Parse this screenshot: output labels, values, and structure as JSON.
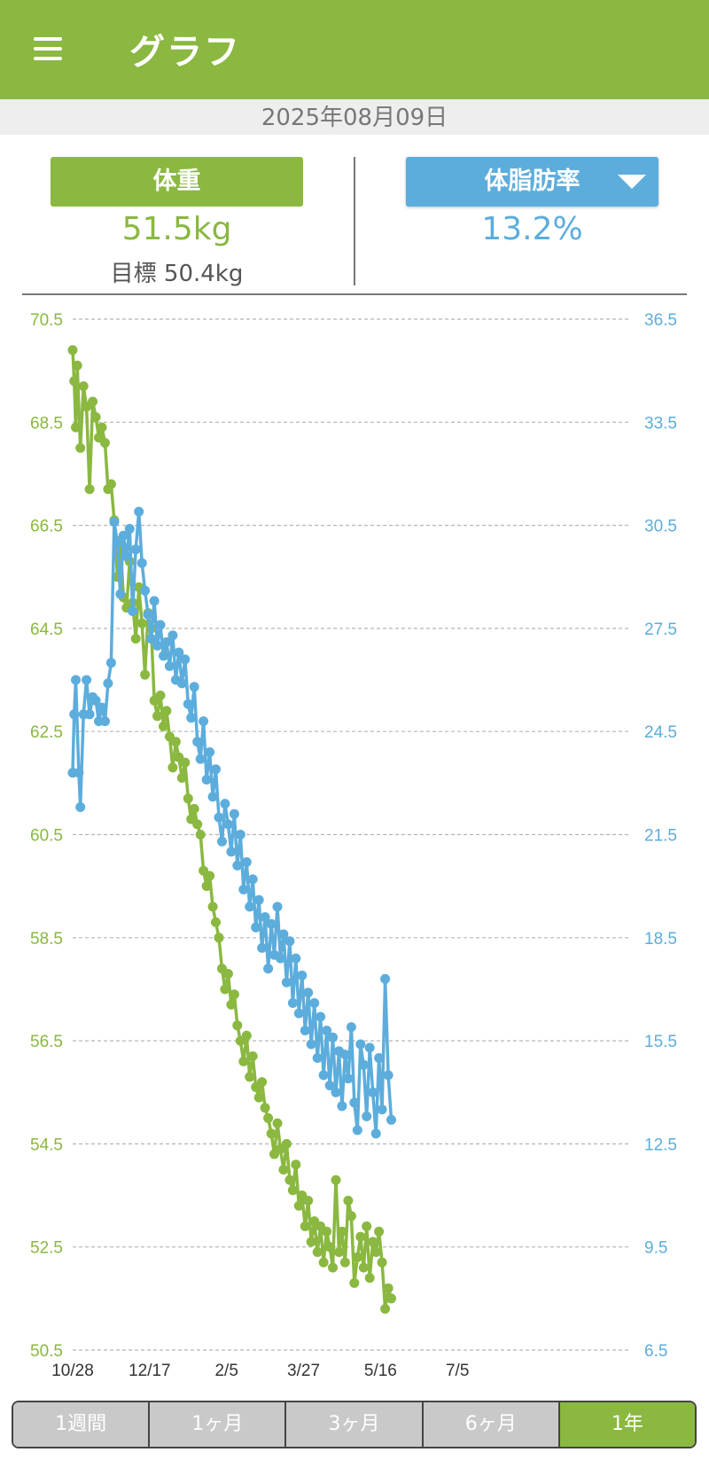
{
  "app_bar": {
    "title": "グラフ",
    "menu_icon": "menu-icon"
  },
  "date": "2025年08月09日",
  "weight": {
    "label": "体重",
    "value": "51.5kg",
    "goal": "目標 50.4kg",
    "color": "#8ab840"
  },
  "body_fat": {
    "label": "体脂肪率",
    "value": "13.2%",
    "color": "#5caddc",
    "dropdown_icon": "caret-down-icon"
  },
  "tabs": [
    {
      "label": "1週間",
      "active": false
    },
    {
      "label": "1ヶ月",
      "active": false
    },
    {
      "label": "3ヶ月",
      "active": false
    },
    {
      "label": "6ヶ月",
      "active": false
    },
    {
      "label": "1年",
      "active": true
    }
  ],
  "chart_data": {
    "type": "line",
    "x_start": "2024-10-28",
    "x_end": "2025-08-09",
    "x_tick_labels": [
      "10/28",
      "12/17",
      "2/5",
      "3/27",
      "5/16",
      "7/5"
    ],
    "y_left": {
      "ticks": [
        "70.5",
        "68.5",
        "66.5",
        "64.5",
        "62.5",
        "60.5",
        "58.5",
        "56.5",
        "54.5",
        "52.5",
        "50.5"
      ],
      "lim": [
        50.5,
        70.5
      ]
    },
    "y_right": {
      "ticks": [
        "36.5",
        "33.5",
        "30.5",
        "27.5",
        "24.5",
        "21.5",
        "18.5",
        "15.5",
        "12.5",
        "9.5",
        "6.5"
      ],
      "lim": [
        6.5,
        36.5
      ]
    },
    "grid": "horizontal dashed",
    "series": [
      {
        "axis": "left",
        "color": "#8ab840",
        "points": [
          [
            0,
            69.9
          ],
          [
            1,
            69.3
          ],
          [
            2,
            68.4
          ],
          [
            3,
            69.6
          ],
          [
            5,
            68.0
          ],
          [
            7,
            69.2
          ],
          [
            9,
            68.8
          ],
          [
            11,
            67.2
          ],
          [
            13,
            68.9
          ],
          [
            15,
            68.6
          ],
          [
            17,
            68.2
          ],
          [
            19,
            68.4
          ],
          [
            21,
            68.1
          ],
          [
            23,
            67.2
          ],
          [
            25,
            67.3
          ],
          [
            27,
            66.6
          ],
          [
            29,
            65.5
          ],
          [
            31,
            66.2
          ],
          [
            33,
            65.1
          ],
          [
            35,
            64.9
          ],
          [
            37,
            65.8
          ],
          [
            39,
            65.0
          ],
          [
            41,
            64.3
          ],
          [
            43,
            65.3
          ],
          [
            45,
            64.6
          ],
          [
            47,
            63.6
          ],
          [
            49,
            64.8
          ],
          [
            51,
            64.5
          ],
          [
            53,
            63.1
          ],
          [
            55,
            62.8
          ],
          [
            57,
            63.2
          ],
          [
            59,
            62.6
          ],
          [
            61,
            62.9
          ],
          [
            63,
            62.4
          ],
          [
            65,
            61.8
          ],
          [
            67,
            62.3
          ],
          [
            69,
            62.0
          ],
          [
            71,
            61.6
          ],
          [
            73,
            61.9
          ],
          [
            75,
            61.2
          ],
          [
            77,
            60.8
          ],
          [
            79,
            61.0
          ],
          [
            81,
            60.7
          ],
          [
            83,
            60.5
          ],
          [
            85,
            59.8
          ],
          [
            87,
            59.5
          ],
          [
            89,
            59.7
          ],
          [
            91,
            59.1
          ],
          [
            93,
            58.8
          ],
          [
            95,
            58.5
          ],
          [
            97,
            57.9
          ],
          [
            99,
            57.5
          ],
          [
            101,
            57.8
          ],
          [
            103,
            57.2
          ],
          [
            105,
            57.4
          ],
          [
            107,
            56.8
          ],
          [
            109,
            56.5
          ],
          [
            111,
            56.1
          ],
          [
            113,
            56.6
          ],
          [
            115,
            55.8
          ],
          [
            117,
            56.2
          ],
          [
            119,
            55.6
          ],
          [
            121,
            55.4
          ],
          [
            123,
            55.7
          ],
          [
            125,
            55.2
          ],
          [
            127,
            55.0
          ],
          [
            129,
            54.7
          ],
          [
            131,
            54.3
          ],
          [
            133,
            54.9
          ],
          [
            135,
            54.4
          ],
          [
            137,
            54.0
          ],
          [
            139,
            54.5
          ],
          [
            141,
            53.8
          ],
          [
            143,
            53.6
          ],
          [
            145,
            54.1
          ],
          [
            147,
            53.3
          ],
          [
            149,
            53.5
          ],
          [
            151,
            52.9
          ],
          [
            153,
            53.4
          ],
          [
            155,
            52.6
          ],
          [
            157,
            53.0
          ],
          [
            159,
            52.4
          ],
          [
            161,
            52.9
          ],
          [
            163,
            52.2
          ],
          [
            165,
            52.8
          ],
          [
            167,
            52.5
          ],
          [
            169,
            52.1
          ],
          [
            171,
            53.8
          ],
          [
            173,
            52.4
          ],
          [
            175,
            52.8
          ],
          [
            177,
            52.2
          ],
          [
            179,
            53.4
          ],
          [
            181,
            53.1
          ],
          [
            183,
            51.8
          ],
          [
            185,
            52.3
          ],
          [
            187,
            52.7
          ],
          [
            189,
            52.1
          ],
          [
            191,
            52.9
          ],
          [
            193,
            51.9
          ],
          [
            195,
            52.6
          ],
          [
            197,
            52.4
          ],
          [
            199,
            52.8
          ],
          [
            201,
            52.2
          ],
          [
            203,
            51.3
          ],
          [
            205,
            51.7
          ],
          [
            207,
            51.5
          ]
        ]
      },
      {
        "axis": "right",
        "color": "#5caddc",
        "points": [
          [
            0,
            23.3
          ],
          [
            1,
            25.0
          ],
          [
            2,
            26.0
          ],
          [
            4,
            23.3
          ],
          [
            5,
            22.3
          ],
          [
            7,
            25.0
          ],
          [
            9,
            26.0
          ],
          [
            11,
            25.0
          ],
          [
            13,
            25.5
          ],
          [
            15,
            25.4
          ],
          [
            17,
            24.8
          ],
          [
            19,
            25.2
          ],
          [
            21,
            24.8
          ],
          [
            23,
            25.9
          ],
          [
            25,
            26.5
          ],
          [
            27,
            30.6
          ],
          [
            29,
            30.0
          ],
          [
            31,
            28.5
          ],
          [
            33,
            30.2
          ],
          [
            35,
            29.6
          ],
          [
            37,
            30.4
          ],
          [
            39,
            28.0
          ],
          [
            41,
            29.8
          ],
          [
            43,
            30.9
          ],
          [
            45,
            29.4
          ],
          [
            47,
            28.6
          ],
          [
            49,
            27.9
          ],
          [
            51,
            27.2
          ],
          [
            53,
            28.3
          ],
          [
            55,
            27.0
          ],
          [
            57,
            27.6
          ],
          [
            59,
            26.7
          ],
          [
            61,
            27.1
          ],
          [
            63,
            26.4
          ],
          [
            65,
            27.3
          ],
          [
            67,
            26.0
          ],
          [
            69,
            26.8
          ],
          [
            71,
            25.9
          ],
          [
            73,
            26.6
          ],
          [
            75,
            25.3
          ],
          [
            77,
            24.9
          ],
          [
            79,
            25.8
          ],
          [
            81,
            24.2
          ],
          [
            83,
            23.7
          ],
          [
            85,
            24.8
          ],
          [
            87,
            23.1
          ],
          [
            89,
            23.9
          ],
          [
            91,
            22.6
          ],
          [
            93,
            23.4
          ],
          [
            95,
            22.0
          ],
          [
            97,
            21.3
          ],
          [
            99,
            22.4
          ],
          [
            101,
            21.8
          ],
          [
            103,
            21.0
          ],
          [
            105,
            22.1
          ],
          [
            107,
            20.6
          ],
          [
            109,
            21.5
          ],
          [
            111,
            19.9
          ],
          [
            113,
            20.7
          ],
          [
            115,
            19.4
          ],
          [
            117,
            20.2
          ],
          [
            119,
            18.8
          ],
          [
            121,
            19.6
          ],
          [
            123,
            18.2
          ],
          [
            125,
            19.1
          ],
          [
            127,
            17.6
          ],
          [
            129,
            18.9
          ],
          [
            131,
            18.0
          ],
          [
            133,
            19.4
          ],
          [
            135,
            17.9
          ],
          [
            137,
            18.6
          ],
          [
            139,
            17.2
          ],
          [
            141,
            18.4
          ],
          [
            143,
            16.6
          ],
          [
            145,
            17.9
          ],
          [
            147,
            16.3
          ],
          [
            149,
            17.4
          ],
          [
            151,
            15.8
          ],
          [
            153,
            16.9
          ],
          [
            155,
            15.4
          ],
          [
            157,
            16.6
          ],
          [
            159,
            15.0
          ],
          [
            161,
            16.2
          ],
          [
            163,
            14.5
          ],
          [
            165,
            15.8
          ],
          [
            167,
            14.2
          ],
          [
            169,
            15.6
          ],
          [
            171,
            14.0
          ],
          [
            173,
            15.2
          ],
          [
            175,
            13.6
          ],
          [
            177,
            15.1
          ],
          [
            179,
            14.4
          ],
          [
            181,
            15.9
          ],
          [
            183,
            13.7
          ],
          [
            185,
            12.9
          ],
          [
            187,
            15.4
          ],
          [
            189,
            14.8
          ],
          [
            191,
            13.3
          ],
          [
            193,
            15.3
          ],
          [
            195,
            14.0
          ],
          [
            197,
            12.8
          ],
          [
            199,
            15.0
          ],
          [
            201,
            13.5
          ],
          [
            203,
            17.3
          ],
          [
            205,
            14.5
          ],
          [
            207,
            13.2
          ]
        ]
      }
    ]
  }
}
